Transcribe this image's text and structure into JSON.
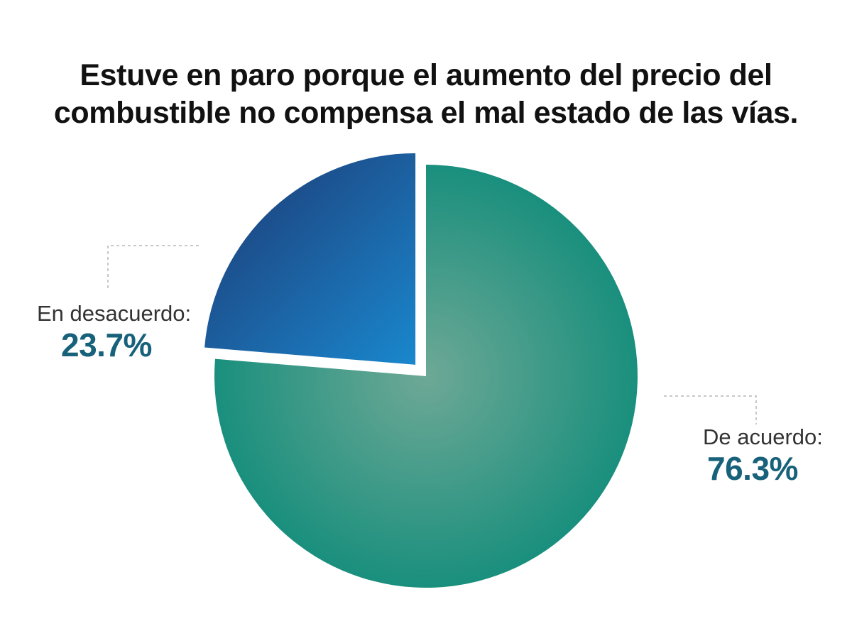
{
  "chart_data": {
    "type": "pie",
    "title_lines": [
      "Estuve en paro porque el aumento del precio del",
      "combustible no compensa el mal estado de las vías."
    ],
    "slices": [
      {
        "name": "En desacuerdo:",
        "value": 23.7,
        "value_label": "23.7%",
        "color_start": "#1d3f7a",
        "color_end": "#1a86cc",
        "exploded": true
      },
      {
        "name": "De acuerdo:",
        "value": 76.3,
        "value_label": "76.3%",
        "color_center": "#6ea896",
        "color_edge": "#1a8f7d",
        "exploded": false
      }
    ],
    "label_color": "#17617a",
    "leader_line_color": "#b5b5b5"
  }
}
